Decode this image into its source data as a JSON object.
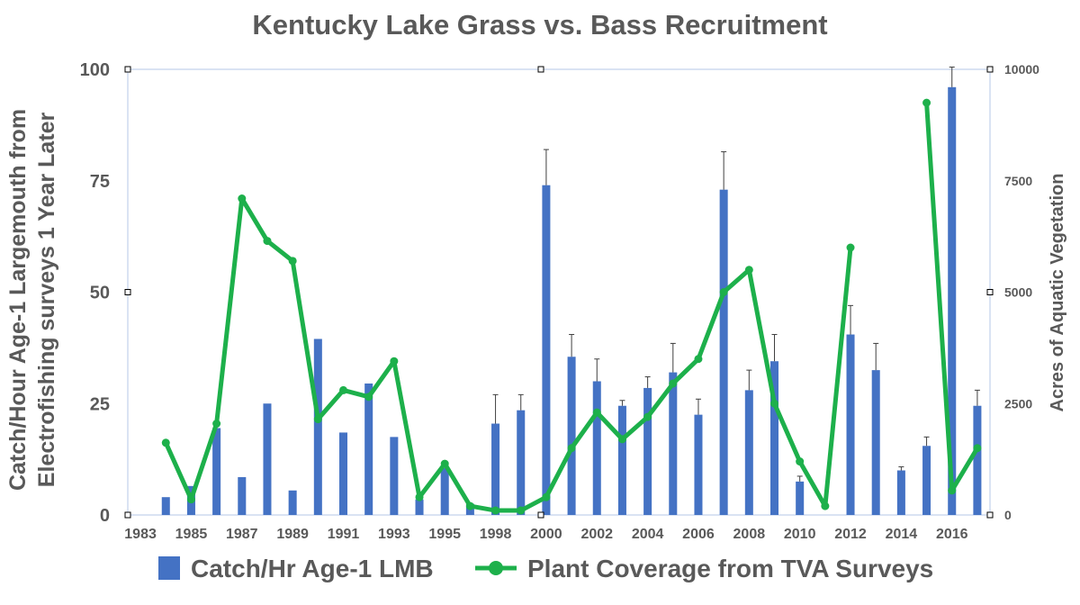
{
  "chart_data": {
    "type": "bar",
    "title": "Kentucky Lake Grass vs. Bass Recruitment",
    "ylabel_line1": "Catch/Hour Age-1 Largemouth from",
    "ylabel_line2": "Electrofishing surveys 1 Year Later",
    "y2label": "Acres of Aquatic Vegetation",
    "ylim": [
      0,
      100
    ],
    "y2lim": [
      0,
      10000
    ],
    "yticks": [
      "0",
      "25",
      "50",
      "75",
      "100"
    ],
    "y2ticks": [
      "0",
      "2500",
      "5000",
      "7500",
      "10000"
    ],
    "xticks": [
      "1983",
      "1985",
      "1987",
      "1989",
      "1991",
      "1993",
      "1995",
      "1998",
      "2000",
      "2002",
      "2004",
      "2006",
      "2008",
      "2010",
      "2012",
      "2014",
      "2016"
    ],
    "grid": false,
    "legend_position": "bottom",
    "colors": {
      "bars": "#4472C4",
      "line": "#1DB04B",
      "text": "#595959",
      "frame": "#B4C7E7"
    },
    "series": [
      {
        "name": "Catch/Hr Age-1 LMB",
        "type": "bar",
        "axis": "left",
        "values": [
          null,
          4,
          6.5,
          19.5,
          8.5,
          25,
          5.5,
          39.5,
          18.5,
          29.5,
          17.5,
          3.5,
          10.5,
          2.5,
          20.5,
          23.5,
          74,
          35.5,
          30,
          24.5,
          28.5,
          32,
          22.5,
          73,
          28,
          34.5,
          7.5,
          null,
          40.5,
          32.5,
          10,
          15.5,
          96,
          24.5
        ],
        "errors": [
          null,
          0,
          0,
          0,
          0,
          0,
          0,
          0,
          0,
          0,
          0,
          0,
          0,
          0,
          6.5,
          3.5,
          8,
          5,
          5,
          1.2,
          2.5,
          6.5,
          3.5,
          8.5,
          4.5,
          6,
          1.2,
          5.5,
          6.5,
          6,
          0.8,
          2,
          4.5,
          3.5
        ]
      },
      {
        "name": "Plant Coverage from TVA Surveys",
        "type": "line",
        "axis": "right",
        "values": [
          null,
          1620,
          350,
          2050,
          7100,
          6150,
          5700,
          2150,
          2800,
          2650,
          3450,
          400,
          1150,
          200,
          100,
          100,
          400,
          1500,
          2300,
          1700,
          2200,
          2950,
          3500,
          5000,
          5500,
          2500,
          1200,
          200,
          6000,
          null,
          null,
          9250,
          550,
          1500
        ]
      }
    ]
  }
}
